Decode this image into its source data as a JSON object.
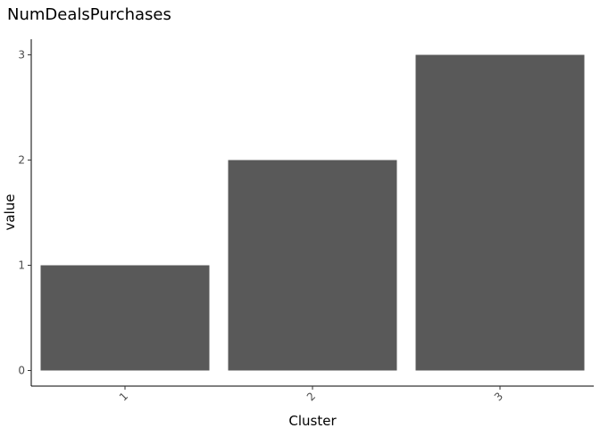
{
  "chart_data": {
    "type": "bar",
    "title": "NumDealsPurchases",
    "xlabel": "Cluster",
    "ylabel": "value",
    "categories": [
      "1",
      "2",
      "3"
    ],
    "values": [
      1,
      2,
      3
    ],
    "yticks": [
      "0",
      "1",
      "2",
      "3"
    ],
    "ylim": [
      0,
      3.15
    ],
    "bar_color": "#595959",
    "grid": false,
    "legend": "none",
    "x_tick_rotation_deg": 45
  }
}
